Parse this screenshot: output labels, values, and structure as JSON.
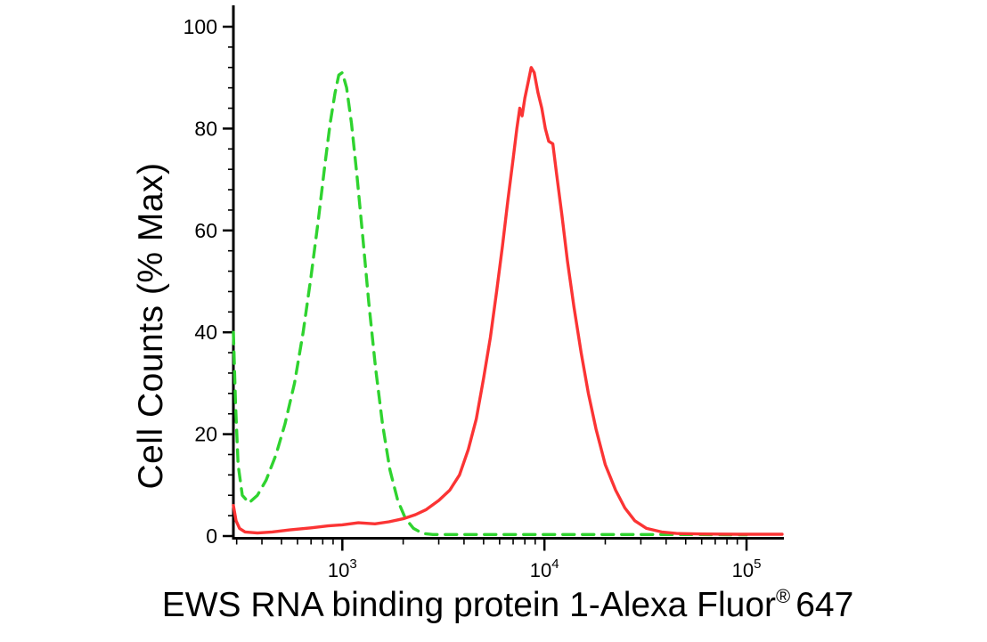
{
  "figure": {
    "background": "#ffffff",
    "axis_color": "#000000"
  },
  "chart_data": {
    "type": "line",
    "subtype": "flow-cytometry-histogram",
    "title": "",
    "ylabel": "Cell Counts (% Max)",
    "xlabel": {
      "main": "EWS RNA binding protein 1-Alexa Fluor",
      "sup": "®",
      "suffix": "647"
    },
    "x_scale": "log",
    "x_range": [
      289,
      150000
    ],
    "y_range": [
      0,
      100
    ],
    "y_major_ticks": [
      0,
      20,
      40,
      60,
      80,
      100
    ],
    "y_minor_step": 4,
    "x_major_ticks": [
      {
        "value": 1000,
        "base": "10",
        "exp": "3"
      },
      {
        "value": 10000,
        "base": "10",
        "exp": "4"
      },
      {
        "value": 100000,
        "base": "10",
        "exp": "5"
      }
    ],
    "grid": false,
    "legend_position": "none",
    "series": [
      {
        "id": "control-green-dashed",
        "name": "Negative control (green, dashed)",
        "color": "#2fd32f",
        "dash": [
          13,
          9
        ],
        "peak_x": 1000,
        "peak_y": 91,
        "points": [
          [
            289,
            40
          ],
          [
            296,
            26
          ],
          [
            305,
            14
          ],
          [
            320,
            8
          ],
          [
            345,
            6.5
          ],
          [
            380,
            8
          ],
          [
            420,
            11
          ],
          [
            470,
            16
          ],
          [
            520,
            22
          ],
          [
            580,
            30
          ],
          [
            640,
            40
          ],
          [
            700,
            51
          ],
          [
            760,
            62
          ],
          [
            820,
            73
          ],
          [
            870,
            81
          ],
          [
            920,
            87
          ],
          [
            960,
            90.5
          ],
          [
            1000,
            91
          ],
          [
            1050,
            88
          ],
          [
            1110,
            81
          ],
          [
            1180,
            71
          ],
          [
            1260,
            59
          ],
          [
            1350,
            46
          ],
          [
            1460,
            33
          ],
          [
            1580,
            22
          ],
          [
            1720,
            13
          ],
          [
            1880,
            7
          ],
          [
            2050,
            3.5
          ],
          [
            2250,
            1.5
          ],
          [
            2500,
            0.5
          ],
          [
            2800,
            0.3
          ],
          [
            3500,
            0.3
          ],
          [
            5000,
            0.3
          ],
          [
            8000,
            0.3
          ],
          [
            15000,
            0.3
          ],
          [
            30000,
            0.3
          ],
          [
            60000,
            0.3
          ],
          [
            100000,
            0.25
          ]
        ]
      },
      {
        "id": "ews-rbp1-red-solid",
        "name": "EWS RNA binding protein 1 stained (red, solid)",
        "color": "#fb3434",
        "dash": null,
        "peak_x": 8600,
        "peak_y": 92,
        "points": [
          [
            289,
            6
          ],
          [
            298,
            3
          ],
          [
            310,
            1.5
          ],
          [
            330,
            0.8
          ],
          [
            380,
            0.6
          ],
          [
            450,
            0.8
          ],
          [
            550,
            1.2
          ],
          [
            700,
            1.6
          ],
          [
            850,
            2
          ],
          [
            1000,
            2.2
          ],
          [
            1200,
            2.6
          ],
          [
            1450,
            2.4
          ],
          [
            1700,
            2.8
          ],
          [
            2000,
            3.4
          ],
          [
            2300,
            4.2
          ],
          [
            2600,
            5.2
          ],
          [
            3000,
            7
          ],
          [
            3400,
            9
          ],
          [
            3800,
            12
          ],
          [
            4200,
            17
          ],
          [
            4600,
            23
          ],
          [
            5000,
            31
          ],
          [
            5400,
            39
          ],
          [
            5800,
            48
          ],
          [
            6200,
            57
          ],
          [
            6600,
            66
          ],
          [
            7000,
            74
          ],
          [
            7300,
            80
          ],
          [
            7550,
            84
          ],
          [
            7750,
            82.5
          ],
          [
            8000,
            86
          ],
          [
            8300,
            89
          ],
          [
            8600,
            92
          ],
          [
            8900,
            91
          ],
          [
            9300,
            87
          ],
          [
            9700,
            84
          ],
          [
            10100,
            80
          ],
          [
            10500,
            77.5
          ],
          [
            11000,
            77
          ],
          [
            11500,
            71
          ],
          [
            12200,
            63
          ],
          [
            13000,
            54
          ],
          [
            14000,
            45
          ],
          [
            15200,
            36
          ],
          [
            16500,
            28
          ],
          [
            18000,
            21
          ],
          [
            20000,
            14
          ],
          [
            22500,
            9
          ],
          [
            25000,
            5.5
          ],
          [
            28000,
            3
          ],
          [
            32000,
            1.5
          ],
          [
            38000,
            0.8
          ],
          [
            45000,
            0.5
          ],
          [
            60000,
            0.4
          ],
          [
            90000,
            0.35
          ],
          [
            150000,
            0.35
          ]
        ]
      }
    ]
  }
}
